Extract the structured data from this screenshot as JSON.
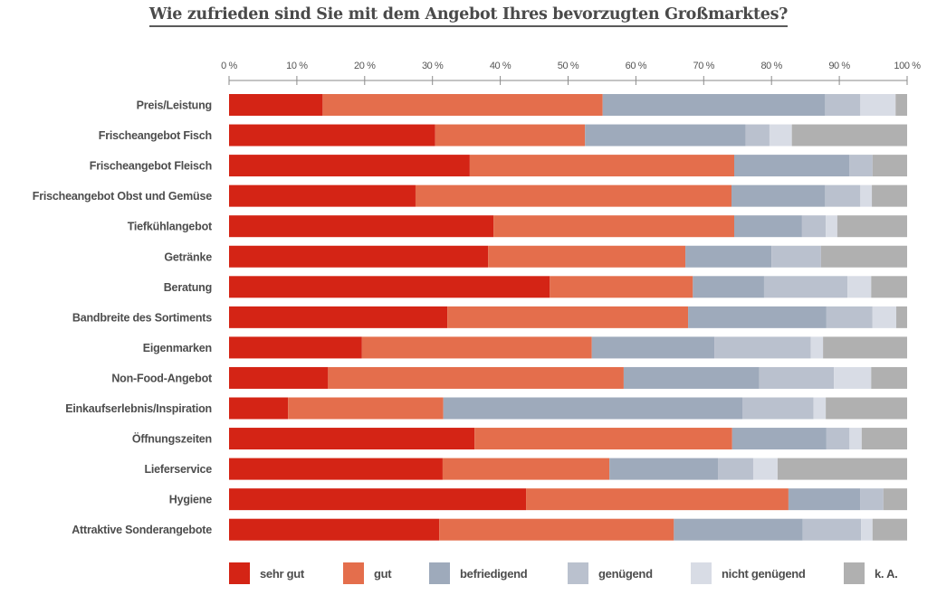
{
  "chart_data": {
    "type": "bar",
    "orientation": "horizontal-stacked-100",
    "title": "Wie zufrieden sind Sie mit dem Angebot Ihres bevorzugten Großmarktes?",
    "xlabel": "",
    "ylabel": "",
    "xlim": [
      0,
      100
    ],
    "x_ticks": [
      "0 %",
      "10 %",
      "20 %",
      "30 %",
      "40 %",
      "50 %",
      "60 %",
      "70 %",
      "80 %",
      "90 %",
      "100 %"
    ],
    "x_tick_values": [
      0,
      10,
      20,
      30,
      40,
      50,
      60,
      70,
      80,
      90,
      100
    ],
    "grid": false,
    "legend_position": "bottom",
    "categories": [
      "Preis/Leistung",
      "Frischeangebot Fisch",
      "Frischeangebot Fleisch",
      "Frischeangebot Obst und Gemüse",
      "Tiefkühlangebot",
      "Getränke",
      "Beratung",
      "Bandbreite des Sortiments",
      "Eigenmarken",
      "Non-Food-Angebot",
      "Einkaufserlebnis/Inspiration",
      "Öffnungszeiten",
      "Lieferservice",
      "Hygiene",
      "Attraktive Sonderangebote"
    ],
    "series": [
      {
        "name": "sehr gut",
        "color": "#d42415",
        "values": [
          13.8,
          30.4,
          35.5,
          27.5,
          39.0,
          38.2,
          47.3,
          32.2,
          19.6,
          14.6,
          8.7,
          36.2,
          31.5,
          43.8,
          31.0
        ]
      },
      {
        "name": "gut",
        "color": "#e46e4c",
        "values": [
          41.3,
          22.1,
          39.0,
          46.6,
          35.5,
          29.1,
          21.1,
          35.5,
          33.9,
          43.6,
          22.9,
          38.0,
          24.6,
          38.7,
          34.6
        ]
      },
      {
        "name": "befriedigend",
        "color": "#9eaabb",
        "values": [
          32.8,
          23.7,
          17.0,
          13.8,
          10.0,
          12.7,
          10.5,
          20.4,
          18.1,
          20.0,
          44.1,
          13.9,
          16.0,
          10.6,
          19.0
        ]
      },
      {
        "name": "genügend",
        "color": "#bac1ce",
        "values": [
          5.2,
          3.5,
          3.4,
          5.2,
          3.5,
          7.3,
          12.3,
          6.8,
          14.2,
          11.0,
          10.5,
          3.4,
          5.2,
          3.4,
          8.6
        ]
      },
      {
        "name": "nicht genügend",
        "color": "#d8dce5",
        "values": [
          5.2,
          3.3,
          0.0,
          1.7,
          1.7,
          0.0,
          3.5,
          3.5,
          1.8,
          5.5,
          1.8,
          1.8,
          3.6,
          0.0,
          1.7
        ]
      },
      {
        "name": "k. A.",
        "color": "#b0b0b0",
        "values": [
          1.7,
          17.0,
          5.1,
          5.2,
          10.3,
          12.7,
          5.3,
          1.6,
          12.4,
          5.3,
          12.0,
          6.7,
          19.1,
          3.5,
          5.1
        ]
      }
    ]
  }
}
